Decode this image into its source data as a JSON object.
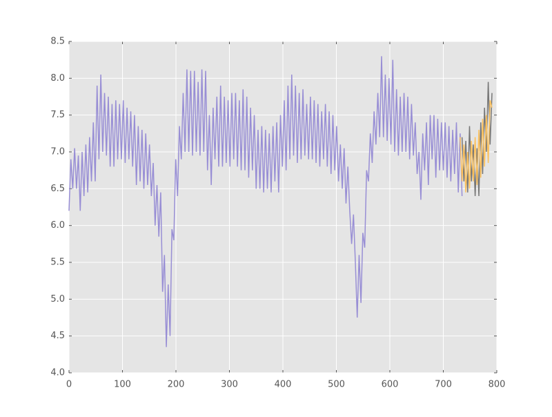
{
  "chart_data": {
    "type": "line",
    "xlim": [
      0,
      800
    ],
    "xticks": [
      0,
      100,
      200,
      300,
      400,
      500,
      600,
      700,
      800
    ],
    "ylim": [
      4.0,
      8.5
    ],
    "yticks": [
      {
        "value": 4.0,
        "label": "4.0"
      },
      {
        "value": 4.5,
        "label": "4.5"
      },
      {
        "value": 5.0,
        "label": "5.0"
      },
      {
        "value": 5.5,
        "label": "5.5"
      },
      {
        "value": 6.0,
        "label": "6.0"
      },
      {
        "value": 6.5,
        "label": "6.5"
      },
      {
        "value": 7.0,
        "label": "7.0"
      },
      {
        "value": 7.5,
        "label": "7.5"
      },
      {
        "value": 8.0,
        "label": "8.0"
      },
      {
        "value": 8.5,
        "label": "8.5"
      }
    ],
    "grid": true,
    "series": [
      {
        "color": "#988ed5",
        "x": [
          0,
          3.5,
          7,
          10.5,
          14,
          17.5,
          21,
          24.5,
          28,
          31.5,
          35,
          38.5,
          42,
          45.5,
          49,
          52.5,
          56,
          59.5,
          63,
          66.5,
          70,
          73.5,
          77,
          80.5,
          84,
          87.5,
          91,
          94.5,
          98,
          101.5,
          105,
          108.5,
          112,
          115.5,
          119,
          122.5,
          126,
          129.5,
          133,
          136.5,
          140,
          143.5,
          147,
          150.5,
          154,
          157.5,
          161,
          164.5,
          168,
          171.5,
          175,
          178.5,
          182,
          185.5,
          189,
          192.5,
          196,
          199.5,
          203,
          206.5,
          210,
          213.5,
          217,
          220.5,
          224,
          227.5,
          231,
          234.5,
          238,
          241.5,
          245,
          248.5,
          252,
          255.5,
          259,
          262.5,
          266,
          269.5,
          273,
          276.5,
          280,
          283.5,
          287,
          290.5,
          294,
          297.5,
          301,
          304.5,
          308,
          311.5,
          315,
          318.5,
          322,
          325.5,
          329,
          332.5,
          336,
          339.5,
          343,
          346.5,
          350,
          353.5,
          357,
          360.5,
          364,
          367.5,
          371,
          374.5,
          378,
          381.5,
          385,
          388.5,
          392,
          395.5,
          399,
          402.5,
          406,
          409.5,
          413,
          416.5,
          420,
          423.5,
          427,
          430.5,
          434,
          437.5,
          441,
          444.5,
          448,
          451.5,
          455,
          458.5,
          462,
          465.5,
          469,
          472.5,
          476,
          479.5,
          483,
          486.5,
          490,
          493.5,
          497,
          500.5,
          504,
          507.5,
          511,
          514.5,
          518,
          521.5,
          525,
          528.5,
          532,
          535.5,
          539,
          542.5,
          546,
          549.5,
          553,
          556.5,
          560,
          563.5,
          567,
          570.5,
          574,
          577.5,
          581,
          584.5,
          588,
          591.5,
          595,
          598.5,
          602,
          605.5,
          609,
          612.5,
          616,
          619.5,
          623,
          626.5,
          630,
          633.5,
          637,
          640.5,
          644,
          647.5,
          651,
          654.5,
          658,
          661.5,
          665,
          668.5,
          672,
          675.5,
          679,
          682.5,
          686,
          689.5,
          693,
          696.5,
          700,
          703.5,
          707,
          710.5,
          714,
          717.5,
          721,
          724.5,
          728,
          731.5,
          735
        ],
        "values": [
          6.2,
          6.9,
          6.5,
          7.05,
          6.5,
          6.95,
          6.2,
          7.0,
          6.4,
          7.1,
          6.45,
          7.2,
          6.6,
          7.4,
          6.6,
          7.9,
          6.9,
          8.05,
          7.0,
          7.8,
          6.95,
          7.75,
          6.8,
          7.65,
          6.8,
          7.7,
          6.9,
          7.65,
          6.9,
          7.7,
          6.85,
          7.6,
          6.9,
          7.55,
          6.8,
          7.5,
          6.55,
          7.35,
          6.6,
          7.3,
          6.5,
          7.25,
          6.55,
          7.1,
          6.4,
          6.85,
          6.0,
          6.55,
          5.85,
          6.45,
          5.1,
          5.6,
          4.35,
          5.2,
          4.5,
          5.95,
          5.8,
          6.9,
          6.4,
          7.35,
          6.9,
          7.8,
          7.0,
          8.12,
          7.0,
          8.1,
          6.95,
          8.1,
          7.0,
          7.95,
          6.95,
          8.12,
          7.0,
          8.1,
          6.75,
          7.5,
          6.55,
          7.6,
          6.9,
          7.75,
          6.8,
          7.9,
          6.8,
          7.75,
          6.85,
          7.7,
          6.8,
          7.8,
          6.9,
          7.8,
          6.8,
          7.7,
          6.75,
          7.85,
          6.75,
          7.75,
          6.65,
          7.6,
          6.75,
          7.5,
          6.5,
          7.3,
          6.5,
          7.35,
          6.45,
          7.3,
          6.5,
          7.25,
          6.45,
          7.35,
          6.6,
          7.4,
          6.45,
          7.5,
          6.8,
          7.7,
          6.75,
          7.9,
          6.9,
          8.05,
          6.95,
          7.9,
          6.85,
          7.8,
          6.9,
          7.85,
          6.95,
          7.65,
          6.9,
          7.75,
          6.9,
          7.7,
          6.85,
          7.65,
          6.8,
          7.55,
          6.9,
          7.65,
          6.8,
          7.55,
          6.7,
          7.5,
          6.75,
          7.35,
          6.6,
          7.1,
          6.5,
          7.05,
          6.3,
          6.8,
          6.2,
          5.75,
          6.15,
          5.5,
          4.75,
          5.6,
          4.95,
          5.9,
          5.7,
          6.75,
          6.6,
          7.25,
          6.85,
          7.55,
          7.1,
          7.8,
          7.2,
          8.3,
          7.2,
          8.05,
          7.15,
          8.0,
          7.1,
          8.25,
          7.0,
          7.85,
          6.95,
          7.75,
          7.0,
          7.8,
          7.0,
          7.75,
          6.9,
          7.65,
          6.95,
          7.4,
          6.7,
          7.0,
          6.35,
          7.25,
          6.75,
          7.4,
          6.55,
          7.5,
          6.9,
          7.5,
          6.65,
          7.45,
          6.75,
          7.4,
          6.75,
          7.4,
          6.65,
          7.35,
          6.6,
          7.3,
          6.7,
          7.4,
          6.45,
          7.25,
          6.4
        ]
      },
      {
        "color": "#777777",
        "x": [
          735,
          738.5,
          742,
          745.5,
          749,
          752.5,
          756,
          759.5,
          763,
          766.5,
          770,
          773.5,
          777,
          780.5,
          784,
          787.5,
          791
        ],
        "values": [
          7.2,
          6.6,
          7.15,
          6.45,
          7.35,
          6.6,
          7.1,
          6.4,
          7.05,
          6.4,
          7.4,
          6.7,
          7.6,
          7.0,
          7.95,
          7.1,
          7.8
        ]
      },
      {
        "color": "#fbc15e",
        "x": [
          731.5,
          735,
          738.5,
          742,
          745.5,
          749,
          752.5,
          756,
          759.5,
          763,
          766.5,
          770,
          773.5,
          777,
          780.5,
          784,
          787.5,
          791
        ],
        "values": [
          7.2,
          6.6,
          7.1,
          6.45,
          7.0,
          6.5,
          7.15,
          6.6,
          7.2,
          6.55,
          7.3,
          6.65,
          7.45,
          6.8,
          7.5,
          6.85,
          7.7,
          7.6
        ]
      }
    ]
  }
}
